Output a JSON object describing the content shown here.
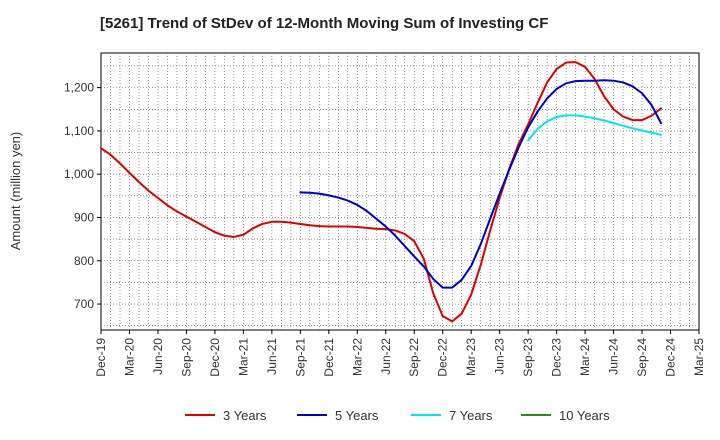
{
  "chart_data": {
    "type": "line",
    "title": "[5261]  Trend of StDev of 12-Month Moving Sum of Investing CF",
    "xlabel": "",
    "ylabel": "Amount (million yen)",
    "ylim": [
      640,
      1280
    ],
    "yticks": [
      700,
      800,
      900,
      1000,
      1100,
      1200
    ],
    "ytick_labels": [
      "700",
      "800",
      "900",
      "1,000",
      "1,100",
      "1,200"
    ],
    "x_start": "Dec-19",
    "x_end": "Mar-25",
    "xtick_labels": [
      "Dec-19",
      "Mar-20",
      "Jun-20",
      "Sep-20",
      "Dec-20",
      "Mar-21",
      "Jun-21",
      "Sep-21",
      "Dec-21",
      "Mar-22",
      "Jun-22",
      "Sep-22",
      "Dec-22",
      "Mar-23",
      "Jun-23",
      "Sep-23",
      "Dec-23",
      "Mar-24",
      "Jun-24",
      "Sep-24",
      "Dec-24",
      "Mar-25"
    ],
    "grid": true,
    "legend_position": "bottom",
    "series": [
      {
        "name": "3 Years",
        "color": "#dd0000",
        "start_month": 0,
        "values": [
          1060,
          1045,
          1025,
          1003,
          982,
          962,
          945,
          928,
          914,
          902,
          890,
          878,
          866,
          858,
          855,
          860,
          875,
          885,
          890,
          890,
          888,
          885,
          882,
          880,
          879,
          879,
          879,
          878,
          876,
          874,
          873,
          870,
          862,
          845,
          805,
          725,
          672,
          660,
          678,
          722,
          790,
          870,
          945,
          1012,
          1070,
          1115,
          1165,
          1212,
          1243,
          1258,
          1259,
          1248,
          1220,
          1180,
          1150,
          1133,
          1125,
          1125,
          1135,
          1152
        ]
      },
      {
        "name": "5 Years",
        "color": "#0000cc",
        "start_month": 21,
        "values": [
          958,
          957,
          955,
          951,
          946,
          939,
          929,
          915,
          897,
          879,
          858,
          834,
          810,
          787,
          758,
          738,
          738,
          756,
          788,
          838,
          897,
          955,
          1010,
          1062,
          1108,
          1145,
          1175,
          1197,
          1210,
          1215,
          1216,
          1216,
          1217,
          1216,
          1212,
          1203,
          1187,
          1160,
          1118
        ]
      },
      {
        "name": "7 Years",
        "color": "#00e5ee",
        "start_month": 45,
        "values": [
          1078,
          1105,
          1122,
          1132,
          1136,
          1136,
          1133,
          1129,
          1124,
          1118,
          1112,
          1106,
          1101,
          1096,
          1091
        ]
      },
      {
        "name": "10 Years",
        "color": "#228b22",
        "start_month": 0,
        "values": []
      }
    ]
  }
}
